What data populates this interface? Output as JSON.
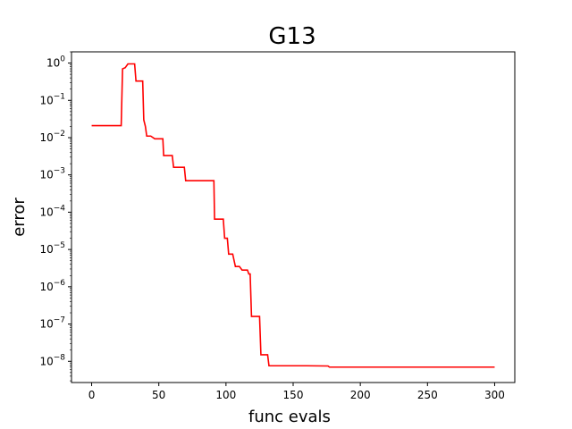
{
  "chart_data": {
    "type": "line",
    "title": "G13",
    "xlabel": "func evals",
    "ylabel": "error",
    "xscale": "linear",
    "yscale": "log",
    "xlim": [
      -15,
      315
    ],
    "ylim": [
      2.7e-09,
      2.0
    ],
    "grid": false,
    "line_color": "#ff0000",
    "x_ticks": [
      {
        "value": 0,
        "label": "0"
      },
      {
        "value": 50,
        "label": "50"
      },
      {
        "value": 100,
        "label": "100"
      },
      {
        "value": 150,
        "label": "150"
      },
      {
        "value": 200,
        "label": "200"
      },
      {
        "value": 250,
        "label": "250"
      },
      {
        "value": 300,
        "label": "300"
      }
    ],
    "y_ticks": [
      {
        "value": 1,
        "base": "10",
        "exp": "0"
      },
      {
        "value": 0.1,
        "base": "10",
        "exp": "−1"
      },
      {
        "value": 0.01,
        "base": "10",
        "exp": "−2"
      },
      {
        "value": 0.001,
        "base": "10",
        "exp": "−3"
      },
      {
        "value": 0.0001,
        "base": "10",
        "exp": "−4"
      },
      {
        "value": 1e-05,
        "base": "10",
        "exp": "−5"
      },
      {
        "value": 1e-06,
        "base": "10",
        "exp": "−6"
      },
      {
        "value": 1e-07,
        "base": "10",
        "exp": "−7"
      },
      {
        "value": 1e-08,
        "base": "10",
        "exp": "−8"
      }
    ],
    "series": [
      {
        "x": [
          0,
          22,
          23,
          25,
          27,
          32,
          33,
          38,
          38.8,
          40,
          41,
          44,
          47,
          53,
          53.6,
          60,
          61,
          69,
          70,
          91,
          91.5,
          98,
          99,
          101,
          102,
          105,
          107,
          110,
          112,
          116,
          117,
          118,
          119,
          125,
          126,
          131,
          132,
          160,
          176,
          177,
          300
        ],
        "y": [
          0.021,
          0.021,
          0.7,
          0.75,
          0.95,
          0.95,
          0.33,
          0.33,
          0.03,
          0.02,
          0.011,
          0.011,
          0.0093,
          0.0093,
          0.0033,
          0.0033,
          0.0016,
          0.0016,
          0.0007,
          0.0007,
          6.5e-05,
          6.5e-05,
          2e-05,
          2e-05,
          7.5e-06,
          7.5e-06,
          3.5e-06,
          3.5e-06,
          2.8e-06,
          2.8e-06,
          2.2e-06,
          2.2e-06,
          1.6e-07,
          1.6e-07,
          1.5e-08,
          1.5e-08,
          7.6e-09,
          7.6e-09,
          7.5e-09,
          7e-09,
          7e-09
        ]
      }
    ]
  }
}
